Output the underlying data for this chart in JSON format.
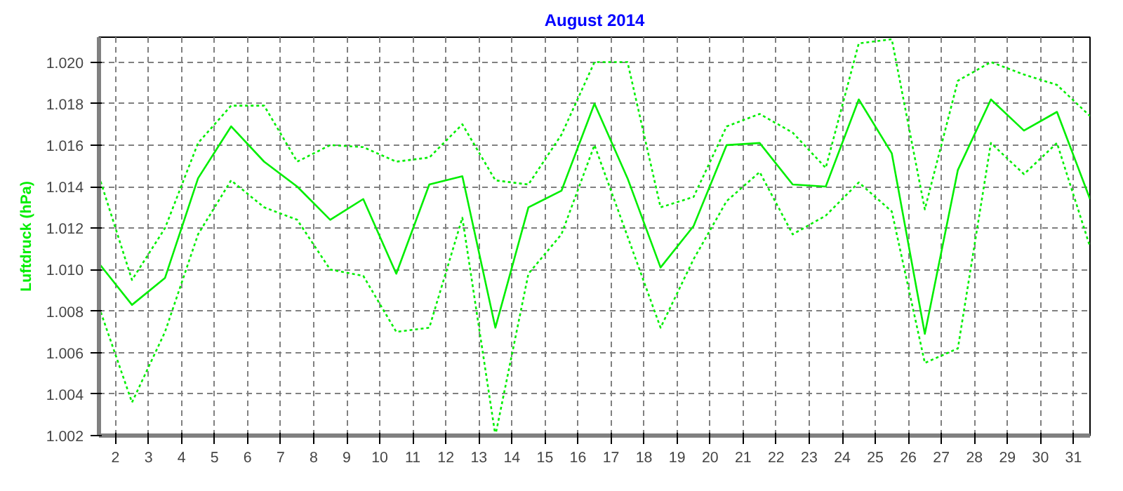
{
  "chart_data": {
    "type": "line",
    "title": "August 2014",
    "ylabel": "Luftdruck (hPa)",
    "x": [
      1.5,
      2.5,
      3.5,
      4.5,
      5.5,
      6.5,
      7.5,
      8.5,
      9.5,
      10.5,
      11.5,
      12.5,
      13.5,
      14.5,
      15.5,
      16.5,
      17.5,
      18.5,
      19.5,
      20.5,
      21.5,
      22.5,
      23.5,
      24.5,
      25.5,
      26.5,
      27.5,
      28.5,
      29.5,
      30.5,
      31.5
    ],
    "xlim": [
      1.5,
      31.5
    ],
    "xticks": [
      2,
      3,
      4,
      5,
      6,
      7,
      8,
      9,
      10,
      11,
      12,
      13,
      14,
      15,
      16,
      17,
      18,
      19,
      20,
      21,
      22,
      23,
      24,
      25,
      26,
      27,
      28,
      29,
      30,
      31
    ],
    "ylim": [
      1.002,
      1.0212
    ],
    "yticks": [
      {
        "value": 1.002,
        "label": "1.002"
      },
      {
        "value": 1.004,
        "label": "1.004"
      },
      {
        "value": 1.006,
        "label": "1.006"
      },
      {
        "value": 1.008,
        "label": "1.008"
      },
      {
        "value": 1.01,
        "label": "1.010"
      },
      {
        "value": 1.012,
        "label": "1.012"
      },
      {
        "value": 1.014,
        "label": "1.014"
      },
      {
        "value": 1.016,
        "label": "1.016"
      },
      {
        "value": 1.018,
        "label": "1.018"
      },
      {
        "value": 1.02,
        "label": "1.020"
      }
    ],
    "grid": true,
    "series": [
      {
        "color": "#00ee00",
        "line_style": "solid",
        "values": [
          1.0103,
          1.0083,
          1.0096,
          1.0144,
          1.0169,
          1.0152,
          1.014,
          1.0124,
          1.0134,
          1.0098,
          1.0141,
          1.0145,
          1.0072,
          1.013,
          1.0138,
          1.018,
          1.0144,
          1.0101,
          1.0121,
          1.016,
          1.0161,
          1.0141,
          1.014,
          1.0182,
          1.0156,
          1.0069,
          1.0148,
          1.0182,
          1.0167,
          1.0176,
          1.0134
        ]
      },
      {
        "color": "#00ee00",
        "line_style": "dotted",
        "values": [
          1.0145,
          1.0095,
          1.012,
          1.0161,
          1.0179,
          1.0179,
          1.0152,
          1.016,
          1.0159,
          1.0152,
          1.0154,
          1.017,
          1.0143,
          1.0141,
          1.0165,
          1.02,
          1.02,
          1.013,
          1.0135,
          1.0169,
          1.0175,
          1.0166,
          1.0149,
          1.0209,
          1.0211,
          1.0129,
          1.0191,
          1.02,
          1.0194,
          1.0189,
          1.0174
        ]
      },
      {
        "color": "#00ee00",
        "line_style": "dotted",
        "values": [
          1.0082,
          1.0036,
          1.007,
          1.0117,
          1.0143,
          1.013,
          1.0124,
          1.01,
          1.0097,
          1.007,
          1.0072,
          1.0125,
          1.002,
          1.0098,
          1.0117,
          1.016,
          1.0116,
          1.0072,
          1.0105,
          1.0133,
          1.0147,
          1.0117,
          1.0126,
          1.0142,
          1.0128,
          1.0055,
          1.0062,
          1.0161,
          1.0146,
          1.0161,
          1.0111
        ]
      }
    ]
  }
}
